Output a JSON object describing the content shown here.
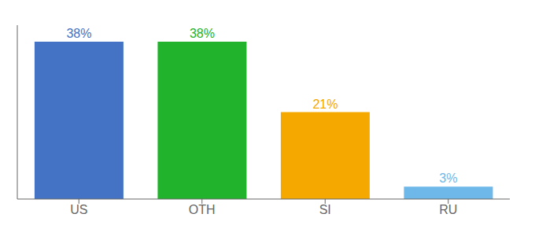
{
  "chart_data": {
    "type": "bar",
    "categories": [
      "US",
      "OTH",
      "SI",
      "RU"
    ],
    "values": [
      38,
      38,
      21,
      3
    ],
    "value_labels": [
      "38%",
      "38%",
      "21%",
      "3%"
    ],
    "data_labels": true,
    "colors": [
      "#4472c4",
      "#21b32b",
      "#f5a800",
      "#6db8e8"
    ],
    "ylim": [
      0,
      42
    ],
    "tick_labels": "x",
    "grid": false
  }
}
